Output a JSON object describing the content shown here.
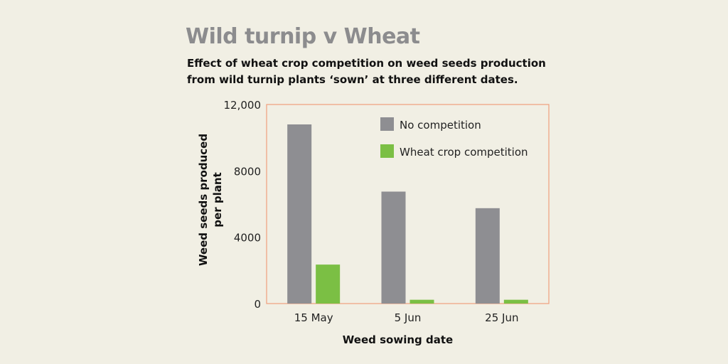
{
  "header": {
    "title": "Wild turnip v Wheat",
    "subtitle": "Effect of wheat crop competition on weed seeds production from wild turnip plants ‘sown’ at three different dates."
  },
  "colors": {
    "background": "#f1efe4",
    "plot_border": "#ef9f7c",
    "no_competition": "#8e8e92",
    "wheat_competition": "#7bbf44",
    "title": "#8c8c8e"
  },
  "chart_data": {
    "type": "bar",
    "title": "",
    "xlabel": "Weed sowing date",
    "ylabel_lines": [
      "Weed seeds produced",
      "per plant"
    ],
    "categories": [
      "15 May",
      "5 Jun",
      "25 Jun"
    ],
    "series": [
      {
        "name": "No competition",
        "color": "#8e8e92",
        "values": [
          10800,
          6750,
          5750
        ]
      },
      {
        "name": "Wheat crop competition",
        "color": "#7bbf44",
        "values": [
          2350,
          230,
          230
        ]
      }
    ],
    "ylim": [
      0,
      12000
    ],
    "yticks": [
      0,
      4000,
      8000,
      12000
    ],
    "ytick_labels": [
      "0",
      "4000",
      "8000",
      "12,000"
    ],
    "legend_position": "top-right",
    "grid": false
  }
}
